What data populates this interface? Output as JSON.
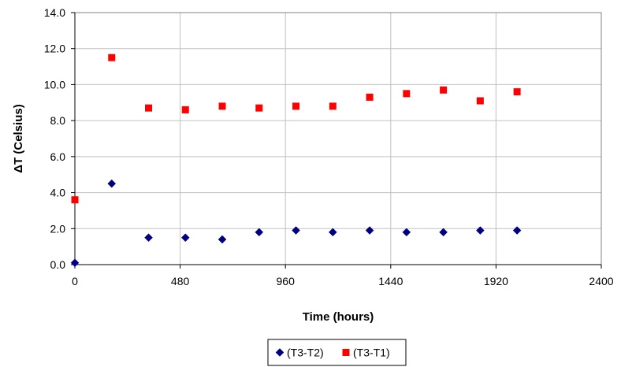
{
  "chart_data": {
    "type": "scatter",
    "xlabel": "Time (hours)",
    "ylabel": "ΔT (Celsius)",
    "xlim": [
      0,
      2400
    ],
    "ylim": [
      0,
      14
    ],
    "xticks": [
      0,
      480,
      960,
      1440,
      1920,
      2400
    ],
    "xtick_labels": [
      "0",
      "480",
      "960",
      "1440",
      "1920",
      "2400"
    ],
    "yticks": [
      0,
      2,
      4,
      6,
      8,
      10,
      12,
      14
    ],
    "ytick_labels": [
      "0.0",
      "2.0",
      "4.0",
      "6.0",
      "8.0",
      "10.0",
      "12.0",
      "14.0"
    ],
    "grid": true,
    "legend": "bottom-center",
    "series": [
      {
        "name": "(T3-T2)",
        "marker": "diamond",
        "color": "#000080",
        "x": [
          0,
          168,
          336,
          504,
          672,
          840,
          1008,
          1176,
          1344,
          1512,
          1680,
          1848,
          2016
        ],
        "y": [
          0.1,
          4.5,
          1.5,
          1.5,
          1.4,
          1.8,
          1.9,
          1.8,
          1.9,
          1.8,
          1.8,
          1.9,
          1.9
        ]
      },
      {
        "name": "(T3-T1)",
        "marker": "square",
        "color": "#ff0000",
        "x": [
          0,
          168,
          336,
          504,
          672,
          840,
          1008,
          1176,
          1344,
          1512,
          1680,
          1848,
          2016
        ],
        "y": [
          3.6,
          11.5,
          8.7,
          8.6,
          8.8,
          8.7,
          8.8,
          8.8,
          9.3,
          9.5,
          9.7,
          9.1,
          9.6
        ]
      }
    ]
  }
}
